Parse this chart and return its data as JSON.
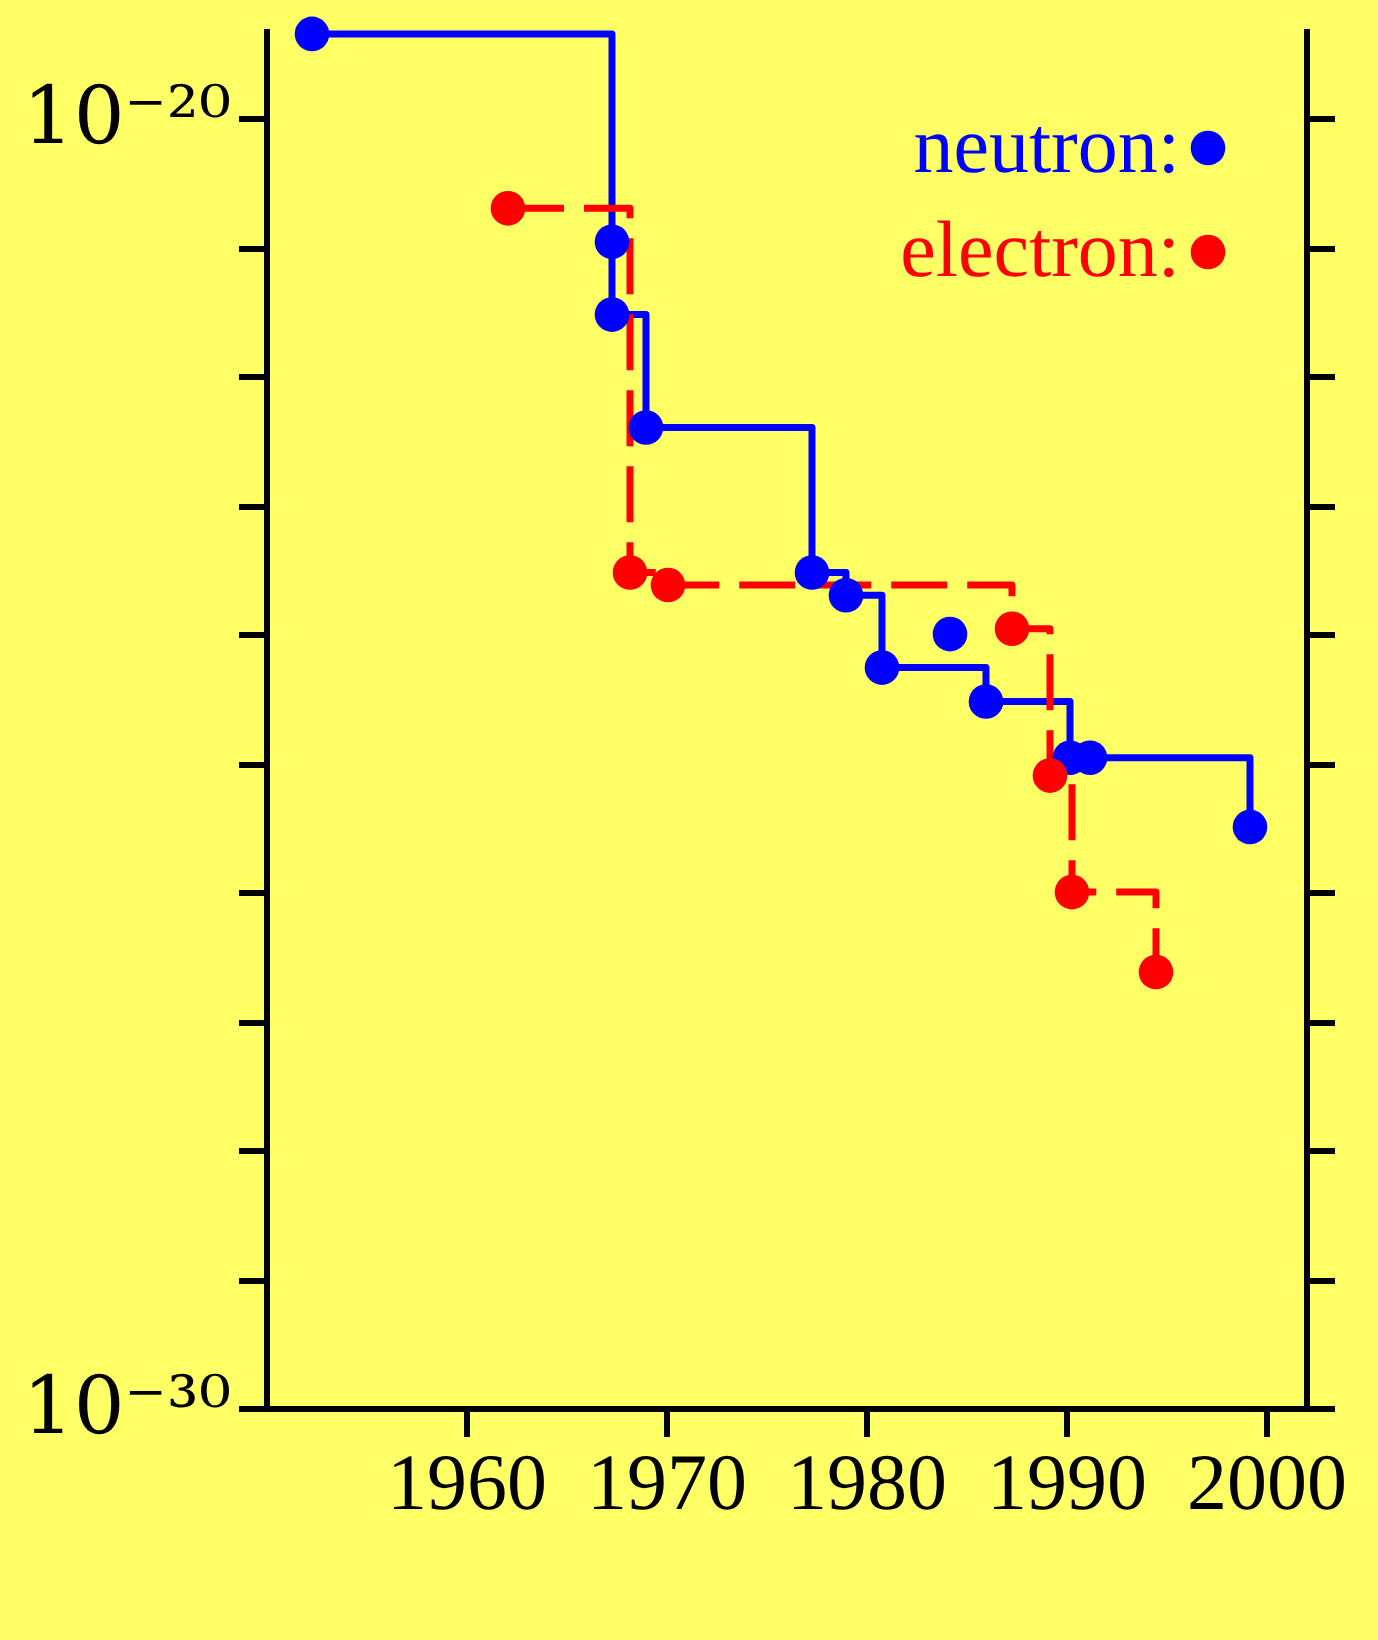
{
  "chart_data": {
    "type": "step",
    "xlim": [
      1950,
      2002
    ],
    "xticks": [
      1960,
      1970,
      1980,
      1990,
      2000
    ],
    "ylim": [
      1e-30,
      5e-20
    ],
    "log": "y",
    "yticks": [
      {
        "value": 1e-30,
        "label": "10⁻³⁰"
      },
      {
        "value": 1e-29,
        "label": null
      },
      {
        "value": 1e-28,
        "label": null
      },
      {
        "value": 1e-27,
        "label": null
      },
      {
        "value": 1e-26,
        "label": null
      },
      {
        "value": 1e-25,
        "label": null
      },
      {
        "value": 1e-24,
        "label": null
      },
      {
        "value": 1e-23,
        "label": null
      },
      {
        "value": 1e-22,
        "label": null
      },
      {
        "value": 1e-21,
        "label": null
      },
      {
        "value": 1e-20,
        "label": "10⁻²⁰"
      }
    ],
    "grid": false,
    "legend": "top right",
    "marker": "circle",
    "series": [
      {
        "name": "neutron:",
        "color": "#0000ff",
        "line_style": "solid",
        "x": [
          1952.3,
          1967.3,
          1967.3,
          1969,
          1977.3,
          1979,
          1980.8,
          1986,
          1990.2,
          1991.2,
          1999.2
        ],
        "values": [
          4.5e-20,
          1.1e-21,
          3e-22,
          4e-23,
          3e-24,
          2e-24,
          5.5e-25,
          3e-25,
          1.1e-25,
          1.1e-25,
          3.2e-26
        ]
      },
      {
        "name": "electron:",
        "color": "#ff0000",
        "line_style": "dashed",
        "x": [
          1962.1,
          1968.2,
          1970.1,
          1987.3,
          1989.2,
          1990.3,
          1994.5
        ],
        "values": [
          2e-21,
          3e-24,
          2.4e-24,
          1.1e-24,
          8e-26,
          1e-26,
          2.4e-27
        ]
      },
      {
        "type": "scatter",
        "color": "#0000ff",
        "x": [
          1984.2
        ],
        "values": [
          1e-24
        ]
      }
    ]
  }
}
